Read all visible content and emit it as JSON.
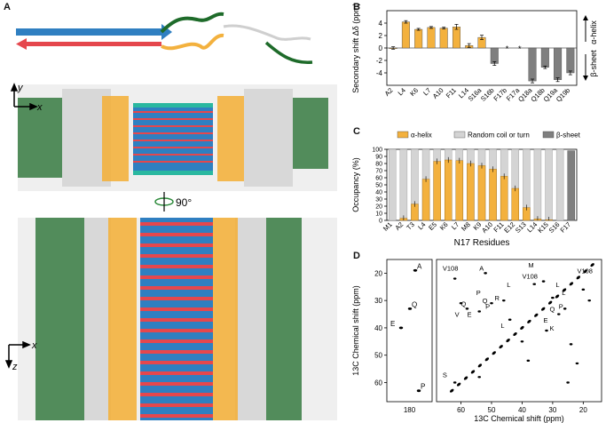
{
  "panels": {
    "a": "A",
    "b": "B",
    "c": "C",
    "d": "D"
  },
  "structure": {
    "axes_top": {
      "y": "y",
      "x": "x"
    },
    "axes_bottom": {
      "x": "x",
      "z": "z"
    },
    "rotate_label": "90°"
  },
  "colors": {
    "helix": "#f3b13e",
    "sheet": "#7f7f7f",
    "coil": "#d4d4d4",
    "strand_red": "#e5474d",
    "strand_blue": "#2f7fc1",
    "loop_green": "#1e6b2a"
  },
  "chart_data": [
    {
      "type": "bar",
      "panel": "B",
      "ylabel": "Secondary shift Δδ (ppm)",
      "categories": [
        "A2",
        "L4",
        "K6",
        "L7",
        "A10",
        "F11",
        "L14",
        "S16a",
        "S16b",
        "F17b",
        "F17a",
        "Q18a",
        "Q18b",
        "Q19a",
        "Q19b"
      ],
      "values": [
        0.0,
        4.2,
        3.0,
        3.3,
        3.2,
        3.4,
        0.4,
        1.7,
        -2.5,
        null,
        null,
        -5.3,
        -3.1,
        -5.1,
        -4.0
      ],
      "errors": [
        0.2,
        0.2,
        0.15,
        0.15,
        0.15,
        0.4,
        0.3,
        0.35,
        0.3,
        null,
        null,
        0.3,
        0.2,
        0.3,
        0.3
      ],
      "bar_colors": [
        "helix",
        "helix",
        "helix",
        "helix",
        "helix",
        "helix",
        "helix",
        "helix",
        "sheet",
        "none",
        "none",
        "sheet",
        "sheet",
        "sheet",
        "sheet"
      ],
      "missing_marker": "*",
      "ylim": [
        -6,
        6
      ],
      "yticks": [
        -4,
        -2,
        0,
        2,
        4
      ],
      "side_labels": {
        "up": "α-helix",
        "down": "β-sheet"
      }
    },
    {
      "type": "bar",
      "panel": "C",
      "xlabel": "N17 Residues",
      "ylabel": "Occupancy (%)",
      "categories": [
        "M1",
        "A2",
        "T3",
        "L4",
        "E5",
        "K6",
        "L7",
        "M8",
        "K9",
        "A10",
        "F11",
        "E12",
        "S13",
        "L14",
        "K15",
        "S16",
        "F17"
      ],
      "series": [
        {
          "name": "α-helix",
          "values": [
            0,
            3,
            23,
            58,
            83,
            85,
            84,
            80,
            77,
            72,
            62,
            45,
            18,
            2,
            1,
            0,
            0
          ]
        },
        {
          "name": "Random coil or turn",
          "values": [
            100,
            100,
            100,
            100,
            100,
            100,
            100,
            100,
            100,
            100,
            100,
            100,
            100,
            100,
            100,
            100,
            2
          ]
        },
        {
          "name": "β-sheet",
          "values": [
            0,
            0,
            0,
            0,
            0,
            0,
            0,
            0,
            0,
            0,
            0,
            0,
            0,
            0,
            0,
            0,
            98
          ]
        }
      ],
      "ylim": [
        0,
        100
      ],
      "yticks": [
        0,
        10,
        20,
        30,
        40,
        50,
        60,
        70,
        80,
        90,
        100
      ],
      "legend": "top"
    },
    {
      "type": "scatter",
      "panel": "D",
      "ylabel": "13C Chemical shift (ppm)",
      "xlabel": "13C Chemical shift (ppm)",
      "left_xticks": [
        180
      ],
      "right_xticks": [
        60,
        50,
        40,
        30,
        20
      ],
      "yticks": [
        20,
        30,
        40,
        50,
        60
      ],
      "left_labels": [
        "A",
        "Q",
        "E",
        "P"
      ],
      "right_labels": [
        "V108",
        "A",
        "V108",
        "M",
        "V108",
        "L",
        "P",
        "Q",
        "R",
        "P",
        "E",
        "Q",
        "L",
        "V",
        "L",
        "L",
        "P",
        "Q",
        "E",
        "K",
        "S"
      ]
    }
  ]
}
